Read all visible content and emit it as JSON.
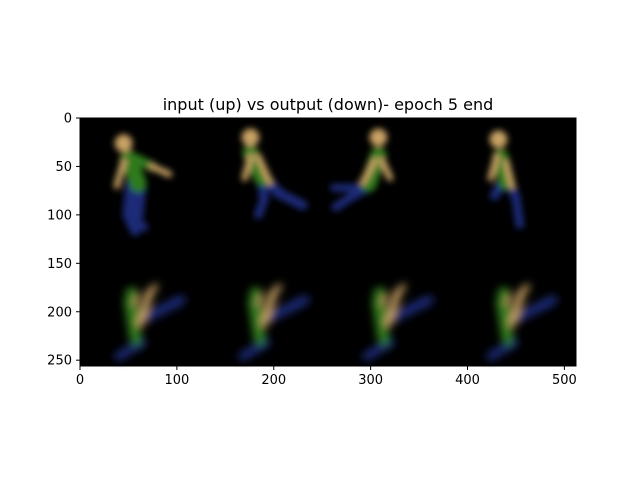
{
  "chart_data": {
    "type": "image",
    "title": "input (up) vs output (down)- epoch 5 end",
    "xlabel": "",
    "ylabel": "",
    "xlim": [
      0,
      512
    ],
    "ylim": [
      256,
      0
    ],
    "x_ticks": [
      0,
      100,
      200,
      300,
      400,
      500
    ],
    "y_ticks": [
      0,
      50,
      100,
      150,
      200,
      250
    ],
    "grid": false,
    "image_grid": {
      "rows": 2,
      "cols": 4,
      "tile_width": 128,
      "tile_height": 128
    },
    "background_color": "#000000",
    "figure_colors": {
      "skin": "#c8a265",
      "shirt": "#2f7a1f",
      "pants": "#1f2a78"
    },
    "rows": [
      {
        "label": "input (up)",
        "poses": [
          "run-lean-right",
          "jump-kick-right",
          "kick-left",
          "hop-right"
        ]
      },
      {
        "label": "output (down)",
        "poses": [
          "blurred-upright",
          "blurred-upright",
          "blurred-upright",
          "blurred-upright"
        ]
      }
    ]
  }
}
